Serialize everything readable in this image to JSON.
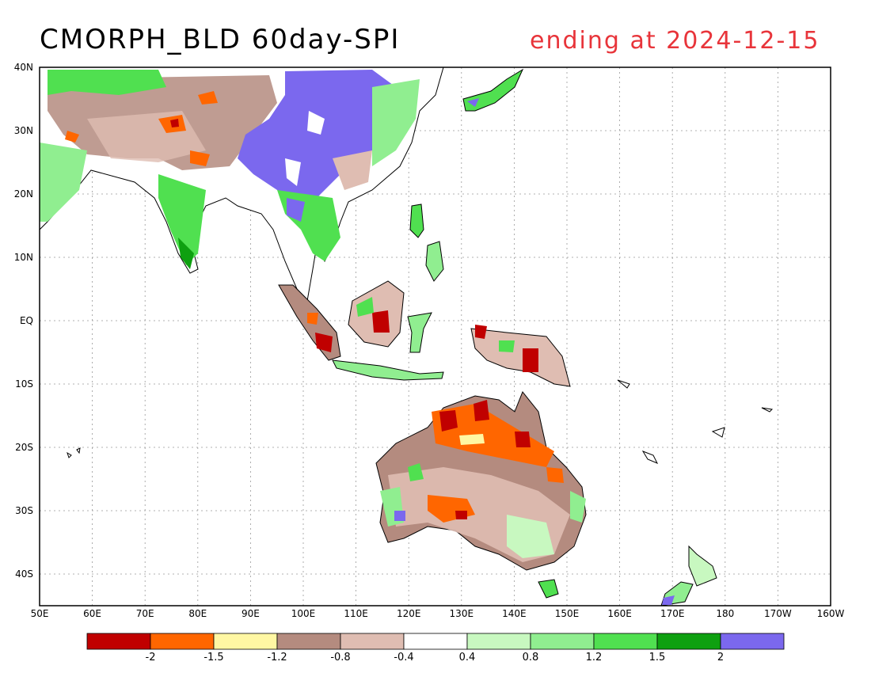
{
  "title": {
    "product": "CMORPH_BLD 60day-SPI",
    "ending": "ending at 2024-12-15"
  },
  "lat_labels": [
    "40N",
    "30N",
    "20N",
    "10N",
    "EQ",
    "10S",
    "20S",
    "30S",
    "40S"
  ],
  "lon_labels": [
    "50E",
    "60E",
    "70E",
    "80E",
    "90E",
    "100E",
    "110E",
    "120E",
    "130E",
    "140E",
    "150E",
    "160E",
    "170E",
    "180",
    "170W",
    "160W"
  ],
  "colorbar": {
    "labels": [
      "-2",
      "-1.5",
      "-1.2",
      "-0.8",
      "-0.4",
      "0.4",
      "0.8",
      "1.2",
      "1.5",
      "2"
    ],
    "colors": [
      "#c00000",
      "#ff6600",
      "#fff7a3",
      "#b48b7f",
      "#dfbdb2",
      "#ffffff",
      "#c8f8c0",
      "#90ee90",
      "#50e050",
      "#0ea010",
      "#7b68ee"
    ]
  },
  "map_colors": {
    "dry_extreme": "#c00000",
    "dry_severe": "#ff6600",
    "dry_moderate": "#fff7a3",
    "dry_brown": "#b48b7f",
    "dry_light": "#dfbdb2",
    "wet_light": "#c8f8c0",
    "wet_moderate": "#90ee90",
    "wet_severe": "#50e050",
    "wet_extreme": "#0ea010",
    "wet_max": "#7b68ee",
    "gridline": "#999999"
  }
}
